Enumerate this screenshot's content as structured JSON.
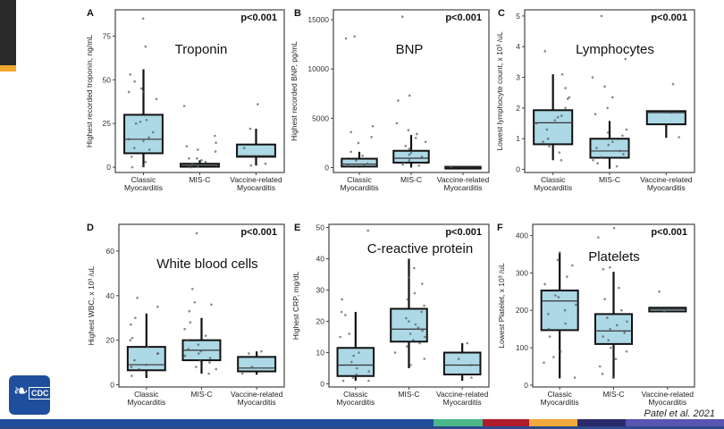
{
  "slide": {
    "citation": "Patel et al. 2021",
    "logo_text": "CDC",
    "bar_colors": [
      "#1f4e9c",
      "#4cb88a",
      "#b01c2e",
      "#f2a93b",
      "#2b2a6b",
      "#5a55b0"
    ],
    "box_fill": "#add8e6"
  },
  "chart_data": [
    {
      "type": "box",
      "letter": "A",
      "title": "Troponin",
      "pvalue": "p<0.001",
      "ylabel": "Highest recorded troponin, ng/mL",
      "ylim": [
        -3,
        90
      ],
      "yticks": [
        "0",
        "25",
        "50",
        "75"
      ],
      "ytick_values": [
        0,
        25,
        50,
        75
      ],
      "categories": [
        "Classic|Myocarditis",
        "MIS-C",
        "Vaccine-related|Myocarditis"
      ],
      "groups": [
        {
          "name": "Classic Myocarditis",
          "low": 0,
          "q1": 8,
          "median": 16,
          "q3": 30,
          "high": 56,
          "points": [
            85,
            69,
            53,
            49,
            45,
            43,
            43,
            39,
            27,
            26,
            25,
            20,
            17,
            16,
            15,
            11,
            10,
            6,
            3,
            1,
            0
          ]
        },
        {
          "name": "MIS-C",
          "low": 0,
          "q1": 0.3,
          "median": 1,
          "q3": 2,
          "high": 4,
          "points": [
            35,
            18,
            14,
            12,
            10,
            9,
            5,
            5,
            4,
            3,
            2,
            1,
            1,
            0.5,
            0
          ]
        },
        {
          "name": "Vaccine-related Myocarditis",
          "low": 1,
          "q1": 6,
          "median": 6.5,
          "q3": 13,
          "high": 22,
          "points": [
            36,
            22,
            11,
            2,
            1
          ]
        }
      ]
    },
    {
      "type": "box",
      "letter": "B",
      "title": "BNP",
      "pvalue": "p<0.001",
      "ylabel": "Highest recorded BNP, pg/mL",
      "ylim": [
        -500,
        16000
      ],
      "yticks": [
        "0",
        "5000",
        "10000",
        "15000"
      ],
      "ytick_values": [
        0,
        5000,
        10000,
        15000
      ],
      "categories": [
        "Classic|Myocarditis",
        "MIS-C",
        "Vaccine-related|Myocarditis"
      ],
      "groups": [
        {
          "name": "Classic Myocarditis",
          "low": 0,
          "q1": 100,
          "median": 350,
          "q3": 900,
          "high": 1600,
          "points": [
            13300,
            13100,
            4200,
            3600,
            3100,
            2500,
            1600,
            1200,
            700,
            400,
            300,
            200
          ]
        },
        {
          "name": "MIS-C",
          "low": 0,
          "q1": 500,
          "median": 950,
          "q3": 1700,
          "high": 3300,
          "points": [
            15300,
            7300,
            6800,
            4500,
            3800,
            3400,
            3000,
            2600,
            2200,
            1900,
            1500,
            1300,
            1100,
            900,
            700,
            500,
            300,
            200
          ]
        },
        {
          "name": "Vaccine-related Myocarditis",
          "low": 0,
          "q1": 20,
          "median": 50,
          "q3": 80,
          "high": 100,
          "points": [
            50
          ]
        }
      ]
    },
    {
      "type": "box",
      "letter": "C",
      "title": "Lymphocytes",
      "pvalue": "p<0.001",
      "ylabel": "Lowest lymphocyte count, x 10³ /uL",
      "ylim": [
        -0.1,
        5.2
      ],
      "yticks": [
        "0",
        "1",
        "2",
        "3",
        "4",
        "5"
      ],
      "ytick_values": [
        0,
        1,
        2,
        3,
        4,
        5
      ],
      "categories": [
        "Classic|Myocarditis",
        "MIS-C",
        "Vaccine-related|Myocarditis"
      ],
      "groups": [
        {
          "name": "Classic Myocarditis",
          "low": 0.3,
          "q1": 0.82,
          "median": 1.52,
          "q3": 1.93,
          "high": 3.1,
          "points": [
            3.85,
            3.1,
            2.65,
            2.35,
            2.3,
            2.0,
            1.75,
            1.7,
            1.6,
            1.5,
            1.3,
            1.0,
            0.9,
            0.75,
            0.55,
            0.3
          ]
        },
        {
          "name": "MIS-C",
          "low": 0.02,
          "q1": 0.38,
          "median": 0.6,
          "q3": 1.0,
          "high": 1.58,
          "points": [
            5.0,
            3.6,
            3.0,
            2.7,
            2.35,
            2.0,
            1.8,
            1.3,
            1.2,
            1.1,
            0.9,
            0.8,
            0.7,
            0.6,
            0.5,
            0.4,
            0.3,
            0.2,
            0.1
          ]
        },
        {
          "name": "Vaccine-related Myocarditis",
          "low": 1.03,
          "q1": 1.47,
          "median": 1.85,
          "q3": 1.9,
          "high": 1.9,
          "points": [
            2.78,
            1.85,
            1.05
          ]
        }
      ]
    },
    {
      "type": "box",
      "letter": "D",
      "title": "White blood cells",
      "pvalue": "p<0.001",
      "ylabel": "Highest WBC, x 10³ /uL",
      "ylim": [
        -1,
        72
      ],
      "yticks": [
        "0",
        "20",
        "40",
        "60"
      ],
      "ytick_values": [
        0,
        20,
        40,
        60
      ],
      "categories": [
        "Classic|Myocarditis",
        "MIS-C",
        "Vaccine-related|Myocarditis"
      ],
      "groups": [
        {
          "name": "Classic Myocarditis",
          "low": 3,
          "q1": 6.5,
          "median": 9,
          "q3": 17,
          "high": 32,
          "points": [
            39,
            35,
            30,
            27,
            21,
            20,
            17,
            14,
            14,
            11,
            9,
            8,
            7,
            5,
            4
          ]
        },
        {
          "name": "MIS-C",
          "low": 5,
          "q1": 11,
          "median": 15.5,
          "q3": 20,
          "high": 30,
          "points": [
            68,
            43,
            37,
            36,
            33,
            28,
            25,
            22,
            20,
            18,
            16,
            15,
            14,
            13,
            12,
            11,
            10,
            8,
            7,
            5
          ]
        },
        {
          "name": "Vaccine-related Myocarditis",
          "low": 4.5,
          "q1": 6,
          "median": 7.5,
          "q3": 12.5,
          "high": 15,
          "points": [
            15,
            14,
            8,
            5
          ]
        }
      ]
    },
    {
      "type": "box",
      "letter": "E",
      "title": "C-reactive protein",
      "pvalue": "p<0.001",
      "ylabel": "Highest CRP, mg/dL",
      "ylim": [
        -1,
        51
      ],
      "yticks": [
        "0",
        "10",
        "20",
        "30",
        "40",
        "50"
      ],
      "ytick_values": [
        0,
        10,
        20,
        30,
        40,
        50
      ],
      "categories": [
        "Classic|Myocarditis",
        "MIS-C",
        "Vaccine-related|Myocarditis"
      ],
      "groups": [
        {
          "name": "Classic Myocarditis",
          "low": 1,
          "q1": 2.5,
          "median": 6,
          "q3": 11.5,
          "high": 23,
          "points": [
            49,
            27,
            23,
            22,
            16,
            15,
            10,
            9,
            7,
            5,
            4,
            3,
            2,
            1,
            1
          ]
        },
        {
          "name": "MIS-C",
          "low": 5,
          "q1": 13.5,
          "median": 17.5,
          "q3": 24,
          "high": 40,
          "points": [
            37,
            34,
            32,
            29,
            27,
            25,
            23,
            21,
            20,
            19,
            18,
            17,
            16,
            15,
            14,
            13,
            12,
            10,
            8,
            6
          ]
        },
        {
          "name": "Vaccine-related Myocarditis",
          "low": 1,
          "q1": 3,
          "median": 6,
          "q3": 10,
          "high": 13,
          "points": [
            13,
            8,
            6,
            2
          ]
        }
      ]
    },
    {
      "type": "box",
      "letter": "F",
      "title": "Platelets",
      "pvalue": "p<0.001",
      "ylabel": "Lowest Platelet, x 10³ /uL",
      "ylim": [
        -5,
        430
      ],
      "yticks": [
        "0",
        "100",
        "200",
        "300",
        "400"
      ],
      "ytick_values": [
        0,
        100,
        200,
        300,
        400
      ],
      "categories": [
        "Classic|Myocarditis",
        "MIS-C",
        "Vaccine-related|Myocarditis"
      ],
      "groups": [
        {
          "name": "Classic Myocarditis",
          "low": 18,
          "q1": 147,
          "median": 225,
          "q3": 253,
          "high": 353,
          "points": [
            355,
            335,
            320,
            290,
            270,
            240,
            235,
            215,
            200,
            190,
            165,
            150,
            130,
            90,
            75,
            60,
            20
          ]
        },
        {
          "name": "MIS-C",
          "low": 18,
          "q1": 110,
          "median": 145,
          "q3": 190,
          "high": 303,
          "points": [
            420,
            395,
            315,
            310,
            260,
            230,
            200,
            180,
            170,
            160,
            150,
            140,
            130,
            120,
            100,
            90,
            70,
            50,
            30,
            20
          ]
        },
        {
          "name": "Vaccine-related Myocarditis",
          "low": 197,
          "q1": 197,
          "median": 203,
          "q3": 207,
          "high": 207,
          "points": [
            250,
            197
          ]
        }
      ]
    }
  ]
}
